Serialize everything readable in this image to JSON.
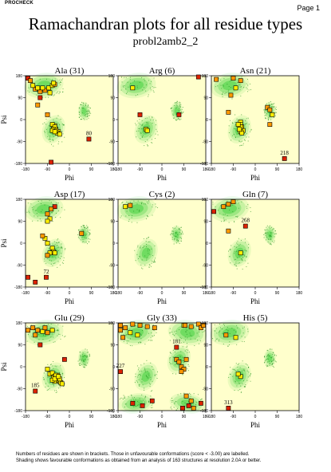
{
  "header": {
    "brand": "PROCHECK",
    "page_label": "Page 1",
    "title": "Ramachandran plots for all residue types",
    "subtitle": "probl2amb2_2"
  },
  "colors": {
    "plot_background": "#ffffcc",
    "favoured_region": "#33cc33",
    "normal_marker": "#ffee00",
    "intermediate_marker": "#ff9900",
    "outlier_marker": "#dd2200",
    "marker_border": "#000000"
  },
  "footnote": {
    "line1": "Numbers of residues are shown in brackets. Those in unfavourable conformations (score < -3.00) are labelled.",
    "line2": "Shading shows favourable conformations as obtained from an analysis of 163 structures at resolution 2.0A or better."
  },
  "chart_data": [
    {
      "type": "scatter",
      "title": "Ala (31)",
      "xlabel": "Phi",
      "ylabel": "Psi",
      "xlim": [
        -180,
        180
      ],
      "ylim": [
        -180,
        180
      ],
      "xticks": [
        "-180",
        "-90",
        "0",
        "90",
        "180"
      ],
      "yticks": [
        "180",
        "90",
        "0",
        "-90",
        "-180"
      ],
      "points": [
        [
          -170,
          170
        ],
        [
          -160,
          160
        ],
        [
          -140,
          125
        ],
        [
          -120,
          115
        ],
        [
          -100,
          120
        ],
        [
          -85,
          130
        ],
        [
          -70,
          140
        ],
        [
          -60,
          145
        ],
        [
          -120,
          90
        ],
        [
          -130,
          60
        ],
        [
          -90,
          20
        ],
        [
          -60,
          -25
        ],
        [
          -65,
          -35
        ],
        [
          -55,
          -40
        ],
        [
          -60,
          -45
        ],
        [
          -45,
          -50
        ],
        [
          -50,
          -55
        ],
        [
          -40,
          -60
        ],
        [
          -70,
          -20
        ],
        [
          -60,
          -30
        ],
        [
          -65,
          -40
        ],
        [
          -55,
          -45
        ],
        [
          -70,
          -45
        ],
        [
          -60,
          -50
        ],
        [
          80,
          -80
        ],
        [
          -75,
          -175
        ],
        [
          -150,
          140
        ],
        [
          -110,
          130
        ],
        [
          -130,
          130
        ],
        [
          -80,
          110
        ],
        [
          -65,
          150
        ]
      ],
      "levels": [
        2,
        1,
        1,
        1,
        1,
        0,
        0,
        1,
        2,
        1,
        1,
        0,
        0,
        0,
        0,
        0,
        0,
        0,
        0,
        0,
        0,
        0,
        0,
        0,
        2,
        2,
        0,
        0,
        0,
        0,
        0
      ],
      "labels": [
        {
          "text": "80",
          "x": 80,
          "y": -80
        }
      ]
    },
    {
      "type": "scatter",
      "title": "Arg (6)",
      "xlabel": "Phi",
      "ylabel": "Psi",
      "xlim": [
        -180,
        180
      ],
      "ylim": [
        -180,
        180
      ],
      "xticks": [
        "-180",
        "-90",
        "0",
        "90",
        "180"
      ],
      "yticks": [
        "180",
        "90",
        "0",
        "-90",
        "-180"
      ],
      "points": [
        [
          -120,
          130
        ],
        [
          -90,
          20
        ],
        [
          -65,
          -40
        ],
        [
          -60,
          -45
        ],
        [
          70,
          20
        ],
        [
          150,
          175
        ]
      ],
      "levels": [
        0,
        2,
        0,
        0,
        2,
        2
      ],
      "labels": []
    },
    {
      "type": "scatter",
      "title": "Asn (21)",
      "xlabel": "Phi",
      "ylabel": "Psi",
      "xlim": [
        -180,
        180
      ],
      "ylim": [
        -180,
        180
      ],
      "xticks": [
        "-180",
        "-90",
        "0",
        "90",
        "180"
      ],
      "yticks": [
        "180",
        "90",
        "0",
        "-90",
        "-180"
      ],
      "points": [
        [
          -160,
          165
        ],
        [
          -90,
          170
        ],
        [
          -60,
          160
        ],
        [
          -110,
          30
        ],
        [
          -60,
          -10
        ],
        [
          -60,
          -20
        ],
        [
          -55,
          -30
        ],
        [
          -60,
          -40
        ],
        [
          -50,
          -45
        ],
        [
          -60,
          -50
        ],
        [
          -55,
          -55
        ],
        [
          -60,
          -30
        ],
        [
          -65,
          -40
        ],
        [
          -70,
          -20
        ],
        [
          50,
          50
        ],
        [
          60,
          40
        ],
        [
          70,
          20
        ],
        [
          60,
          -20
        ],
        [
          120,
          -160
        ],
        [
          -80,
          130
        ],
        [
          -100,
          100
        ]
      ],
      "levels": [
        1,
        1,
        1,
        1,
        0,
        0,
        0,
        0,
        0,
        0,
        0,
        0,
        0,
        0,
        1,
        1,
        0,
        1,
        2,
        0,
        1
      ],
      "labels": [
        {
          "text": "218",
          "x": 120,
          "y": -160
        }
      ]
    },
    {
      "type": "scatter",
      "title": "Asp (17)",
      "xlabel": "Phi",
      "ylabel": "Psi",
      "xlim": [
        -180,
        180
      ],
      "ylim": [
        -180,
        180
      ],
      "xticks": [
        "-180",
        "-90",
        "0",
        "90",
        "180"
      ],
      "yticks": [
        "180",
        "90",
        "0",
        "-90",
        "-180"
      ],
      "points": [
        [
          -60,
          150
        ],
        [
          -75,
          140
        ],
        [
          -90,
          120
        ],
        [
          -80,
          100
        ],
        [
          -90,
          90
        ],
        [
          -100,
          20
        ],
        [
          -90,
          0
        ],
        [
          -70,
          -20
        ],
        [
          -65,
          -35
        ],
        [
          -60,
          -40
        ],
        [
          -80,
          -40
        ],
        [
          -90,
          -50
        ],
        [
          50,
          40
        ],
        [
          -170,
          -140
        ],
        [
          -140,
          -160
        ],
        [
          -95,
          -140
        ],
        [
          -110,
          30
        ]
      ],
      "levels": [
        2,
        1,
        1,
        0,
        0,
        0,
        0,
        0,
        0,
        0,
        0,
        1,
        1,
        2,
        2,
        2,
        1
      ],
      "labels": [
        {
          "text": "72",
          "x": -95,
          "y": -140
        }
      ]
    },
    {
      "type": "scatter",
      "title": "Cys (2)",
      "xlabel": "Phi",
      "ylabel": "Psi",
      "xlim": [
        -180,
        180
      ],
      "ylim": [
        -180,
        180
      ],
      "xticks": [
        "-180",
        "-90",
        "0",
        "90",
        "180"
      ],
      "yticks": [
        "180",
        "90",
        "0",
        "-90",
        "-180"
      ],
      "points": [
        [
          -150,
          150
        ],
        [
          -130,
          155
        ]
      ],
      "levels": [
        0,
        1
      ],
      "labels": []
    },
    {
      "type": "scatter",
      "title": "Gln (7)",
      "xlabel": "Phi",
      "ylabel": "Psi",
      "xlim": [
        -180,
        180
      ],
      "ylim": [
        -180,
        180
      ],
      "xticks": [
        "-180",
        "-90",
        "0",
        "90",
        "180"
      ],
      "yticks": [
        "180",
        "90",
        "0",
        "-90",
        "-180"
      ],
      "points": [
        [
          -170,
          130
        ],
        [
          -130,
          150
        ],
        [
          -110,
          160
        ],
        [
          -90,
          170
        ],
        [
          -110,
          50
        ],
        [
          -60,
          -40
        ],
        [
          -40,
          70
        ]
      ],
      "levels": [
        2,
        1,
        1,
        1,
        1,
        0,
        2
      ],
      "labels": [
        {
          "text": "268",
          "x": -40,
          "y": 70
        }
      ]
    },
    {
      "type": "scatter",
      "title": "Glu (29)",
      "xlabel": "Phi",
      "ylabel": "Psi",
      "xlim": [
        -180,
        180
      ],
      "ylim": [
        -180,
        180
      ],
      "xticks": [
        "-180",
        "-90",
        "0",
        "90",
        "180"
      ],
      "yticks": [
        "180",
        "90",
        "0",
        "-90",
        "-180"
      ],
      "points": [
        [
          -170,
          150
        ],
        [
          -150,
          160
        ],
        [
          -130,
          150
        ],
        [
          -110,
          145
        ],
        [
          -100,
          160
        ],
        [
          -90,
          140
        ],
        [
          -70,
          150
        ],
        [
          -140,
          130
        ],
        [
          -120,
          90
        ],
        [
          -90,
          -10
        ],
        [
          -80,
          -30
        ],
        [
          -70,
          -25
        ],
        [
          -60,
          -40
        ],
        [
          -55,
          -50
        ],
        [
          -50,
          -45
        ],
        [
          -65,
          -45
        ],
        [
          -60,
          -60
        ],
        [
          -45,
          -55
        ],
        [
          -40,
          -60
        ],
        [
          -50,
          -35
        ],
        [
          -70,
          -55
        ],
        [
          -35,
          -65
        ],
        [
          -30,
          -70
        ],
        [
          -40,
          -50
        ],
        [
          -55,
          -35
        ],
        [
          -60,
          -50
        ],
        [
          -45,
          -40
        ],
        [
          -140,
          -100
        ],
        [
          -20,
          30
        ]
      ],
      "levels": [
        1,
        1,
        1,
        0,
        1,
        1,
        0,
        1,
        2,
        0,
        0,
        0,
        0,
        0,
        0,
        0,
        0,
        0,
        0,
        0,
        0,
        0,
        0,
        0,
        0,
        0,
        0,
        2,
        2
      ],
      "labels": [
        {
          "text": "185",
          "x": -140,
          "y": -100
        }
      ]
    },
    {
      "type": "scatter",
      "title": "Gly (33)",
      "xlabel": "Phi",
      "ylabel": "Psi",
      "xlim": [
        -180,
        180
      ],
      "ylim": [
        -180,
        180
      ],
      "xticks": [
        "-180",
        "-90",
        "0",
        "90",
        "180"
      ],
      "yticks": [
        "180",
        "90",
        "0",
        "-90",
        "-180"
      ],
      "points": [
        [
          -170,
          170
        ],
        [
          -150,
          160
        ],
        [
          -120,
          175
        ],
        [
          -90,
          170
        ],
        [
          -60,
          165
        ],
        [
          -30,
          160
        ],
        [
          -100,
          130
        ],
        [
          -160,
          120
        ],
        [
          -130,
          140
        ],
        [
          90,
          170
        ],
        [
          120,
          165
        ],
        [
          150,
          175
        ],
        [
          160,
          160
        ],
        [
          -170,
          -20
        ],
        [
          -120,
          -150
        ],
        [
          -80,
          -160
        ],
        [
          -40,
          -140
        ],
        [
          60,
          30
        ],
        [
          70,
          20
        ],
        [
          80,
          0
        ],
        [
          90,
          -10
        ],
        [
          80,
          -20
        ],
        [
          100,
          -120
        ],
        [
          120,
          -140
        ],
        [
          130,
          -170
        ],
        [
          160,
          -150
        ],
        [
          85,
          -170
        ],
        [
          110,
          -160
        ],
        [
          170,
          170
        ],
        [
          95,
          170
        ],
        [
          -170,
          150
        ],
        [
          60,
          80
        ],
        [
          100,
          30
        ]
      ],
      "levels": [
        1,
        1,
        1,
        1,
        1,
        1,
        0,
        1,
        0,
        0,
        1,
        1,
        1,
        2,
        2,
        2,
        2,
        1,
        1,
        1,
        1,
        1,
        1,
        1,
        1,
        2,
        2,
        2,
        1,
        1,
        1,
        2,
        1
      ],
      "labels": [
        {
          "text": "227",
          "x": -170,
          "y": -20
        },
        {
          "text": "181",
          "x": 60,
          "y": 80
        }
      ]
    },
    {
      "type": "scatter",
      "title": "His (5)",
      "xlabel": "Phi",
      "ylabel": "Psi",
      "xlim": [
        -180,
        180
      ],
      "ylim": [
        -180,
        180
      ],
      "xticks": [
        "-180",
        "-90",
        "0",
        "90",
        "180"
      ],
      "yticks": [
        "180",
        "90",
        "0",
        "-90",
        "-180"
      ],
      "points": [
        [
          -120,
          130
        ],
        [
          -80,
          120
        ],
        [
          -60,
          -40
        ],
        [
          -70,
          -30
        ],
        [
          -110,
          -170
        ]
      ],
      "levels": [
        1,
        0,
        0,
        0,
        2
      ],
      "labels": [
        {
          "text": "313",
          "x": -110,
          "y": -170
        }
      ]
    }
  ]
}
